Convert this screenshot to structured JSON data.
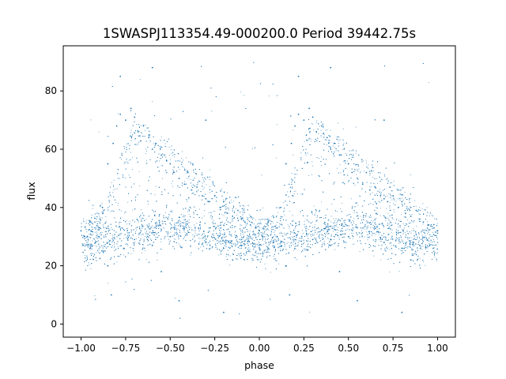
{
  "chart_data": {
    "type": "scatter",
    "title": "1SWASPJ113354.49-000200.0 Period 39442.75s",
    "xlabel": "phase",
    "ylabel": "flux",
    "xlim": [
      -1.1,
      1.1
    ],
    "ylim": [
      -4.5,
      95.5
    ],
    "xticks": [
      -1.0,
      -0.75,
      -0.5,
      -0.25,
      0.0,
      0.25,
      0.5,
      0.75,
      1.0
    ],
    "xtick_labels": [
      "−1.00",
      "−0.75",
      "−0.50",
      "−0.25",
      "0.00",
      "0.25",
      "0.50",
      "0.75",
      "1.00"
    ],
    "yticks": [
      0,
      20,
      40,
      60,
      80
    ],
    "ytick_labels": [
      "0",
      "20",
      "40",
      "60",
      "80"
    ],
    "grid": false,
    "marker_color": "#1f77b4",
    "series_description": "Phase-folded light curve, periodic with period 1.0 in phase; a dense band of points at flux ~24–36 plus a broad upper envelope rising to ~75 near phase -0.7/0.3 and falling to ~35 near phase 0/1.",
    "points": [
      [
        -1.0,
        32
      ],
      [
        -0.98,
        30
      ],
      [
        -0.95,
        35
      ],
      [
        -0.92,
        28
      ],
      [
        -0.9,
        33
      ],
      [
        -0.88,
        40
      ],
      [
        -0.85,
        55
      ],
      [
        -0.82,
        62
      ],
      [
        -0.8,
        68
      ],
      [
        -0.78,
        72
      ],
      [
        -0.75,
        70
      ],
      [
        -0.72,
        74
      ],
      [
        -0.7,
        71
      ],
      [
        -0.68,
        66
      ],
      [
        -0.65,
        68
      ],
      [
        -0.62,
        64
      ],
      [
        -0.6,
        60
      ],
      [
        -0.58,
        62
      ],
      [
        -0.55,
        58
      ],
      [
        -0.52,
        56
      ],
      [
        -0.5,
        55
      ],
      [
        -0.48,
        52
      ],
      [
        -0.45,
        50
      ],
      [
        -0.42,
        48
      ],
      [
        -0.4,
        52
      ],
      [
        -0.38,
        46
      ],
      [
        -0.35,
        47
      ],
      [
        -0.32,
        44
      ],
      [
        -0.3,
        43
      ],
      [
        -0.28,
        42
      ],
      [
        -0.25,
        44
      ],
      [
        -0.22,
        40
      ],
      [
        -0.2,
        42
      ],
      [
        -0.18,
        38
      ],
      [
        -0.15,
        37
      ],
      [
        -0.12,
        39
      ],
      [
        -0.1,
        36
      ],
      [
        -0.08,
        35
      ],
      [
        -0.05,
        34
      ],
      [
        -0.02,
        33
      ],
      [
        0.0,
        32
      ],
      [
        0.02,
        30
      ],
      [
        0.05,
        35
      ],
      [
        0.08,
        28
      ],
      [
        0.1,
        33
      ],
      [
        0.12,
        40
      ],
      [
        0.15,
        55
      ],
      [
        0.18,
        62
      ],
      [
        0.2,
        68
      ],
      [
        0.22,
        72
      ],
      [
        0.25,
        70
      ],
      [
        0.28,
        74
      ],
      [
        0.3,
        71
      ],
      [
        0.32,
        66
      ],
      [
        0.35,
        68
      ],
      [
        0.38,
        64
      ],
      [
        0.4,
        60
      ],
      [
        0.42,
        62
      ],
      [
        0.45,
        58
      ],
      [
        0.48,
        56
      ],
      [
        0.5,
        55
      ],
      [
        0.52,
        52
      ],
      [
        0.55,
        50
      ],
      [
        0.58,
        48
      ],
      [
        0.6,
        52
      ],
      [
        0.62,
        46
      ],
      [
        0.65,
        47
      ],
      [
        0.68,
        44
      ],
      [
        0.7,
        43
      ],
      [
        0.72,
        42
      ],
      [
        0.75,
        44
      ],
      [
        0.78,
        40
      ],
      [
        0.8,
        42
      ],
      [
        0.82,
        38
      ],
      [
        0.85,
        37
      ],
      [
        0.88,
        39
      ],
      [
        0.9,
        36
      ],
      [
        0.92,
        35
      ],
      [
        0.95,
        34
      ],
      [
        0.98,
        33
      ],
      [
        1.0,
        32
      ],
      [
        -0.9,
        30
      ],
      [
        -0.7,
        29
      ],
      [
        -0.5,
        30
      ],
      [
        -0.3,
        28
      ],
      [
        -0.1,
        27
      ],
      [
        0.1,
        30
      ],
      [
        0.3,
        29
      ],
      [
        0.5,
        30
      ],
      [
        0.7,
        28
      ],
      [
        0.9,
        27
      ],
      [
        -0.95,
        26
      ],
      [
        -0.6,
        27
      ],
      [
        -0.2,
        26
      ],
      [
        0.05,
        26
      ],
      [
        0.4,
        27
      ],
      [
        0.8,
        26
      ],
      [
        -0.85,
        20
      ],
      [
        -0.55,
        18
      ],
      [
        -0.15,
        22
      ],
      [
        0.15,
        20
      ],
      [
        0.45,
        18
      ],
      [
        0.85,
        22
      ],
      [
        -0.83,
        10
      ],
      [
        -0.45,
        8
      ],
      [
        -0.2,
        4
      ],
      [
        0.17,
        10
      ],
      [
        0.55,
        8
      ],
      [
        0.8,
        4
      ],
      [
        -0.78,
        85
      ],
      [
        -0.6,
        88
      ],
      [
        0.22,
        85
      ],
      [
        0.4,
        88
      ],
      [
        -0.3,
        70
      ],
      [
        0.7,
        70
      ]
    ]
  }
}
